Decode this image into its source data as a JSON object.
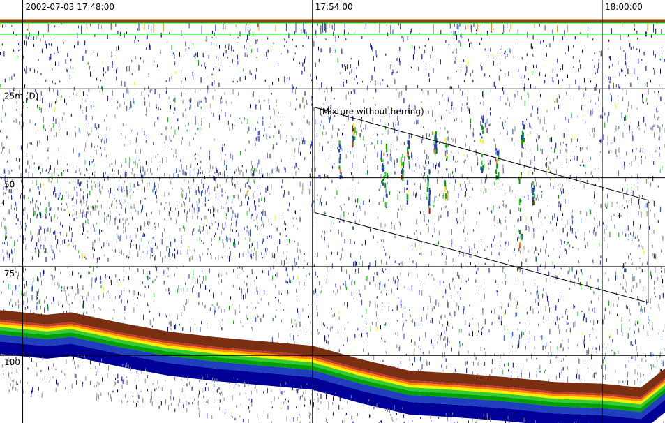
{
  "chart_data": {
    "type": "echogram",
    "time_labels": [
      {
        "text": "2002-07-03 17:48:00",
        "minutes": 0
      },
      {
        "text": "17:54:00",
        "minutes": 6
      },
      {
        "text": "18:00:00",
        "minutes": 12
      }
    ],
    "x_range_minutes": [
      -0.47,
      13.3
    ],
    "y_range_m": [
      0,
      119
    ],
    "depth_labels": [
      {
        "text": "25m (D)",
        "depth": 25
      },
      {
        "text": "50",
        "depth": 50
      },
      {
        "text": "75",
        "depth": 75
      },
      {
        "text": "100",
        "depth": 100
      }
    ],
    "grid": true,
    "region": {
      "label": "(Mixture without herring)",
      "polygon": [
        {
          "t": 6.05,
          "d": 30.2
        },
        {
          "t": 6.05,
          "d": 59.8
        },
        {
          "t": 12.95,
          "d": 85.1
        },
        {
          "t": 12.95,
          "d": 56.3
        }
      ]
    },
    "surface_lines": [
      {
        "depth": 6.4,
        "color": "#00c000"
      },
      {
        "depth": 9.6,
        "color": "#33ee33"
      }
    ],
    "seabed_profile": [
      {
        "t": -0.47,
        "d": 90.0
      },
      {
        "t": 0.5,
        "d": 91.3
      },
      {
        "t": 1.0,
        "d": 90.6
      },
      {
        "t": 2.0,
        "d": 93.5
      },
      {
        "t": 3.0,
        "d": 96.0
      },
      {
        "t": 4.0,
        "d": 97.6
      },
      {
        "t": 5.0,
        "d": 98.8
      },
      {
        "t": 6.0,
        "d": 100.0
      },
      {
        "t": 7.0,
        "d": 103.8
      },
      {
        "t": 8.0,
        "d": 107.0
      },
      {
        "t": 9.0,
        "d": 107.8
      },
      {
        "t": 10.0,
        "d": 108.8
      },
      {
        "t": 11.0,
        "d": 110.2
      },
      {
        "t": 12.0,
        "d": 110.7
      },
      {
        "t": 12.8,
        "d": 111.8
      },
      {
        "t": 13.3,
        "d": 106.4
      }
    ],
    "colors": {
      "background": "#ffffff",
      "grid": "#000000",
      "region": "#000000",
      "surface_band": "#8b4513",
      "seabed_scale": [
        "#7a2e12",
        "#c0392b",
        "#ff8800",
        "#ffee00",
        "#33cc33",
        "#00a000",
        "#1f3fbf",
        "#000099"
      ],
      "echo_scale": [
        "#888888",
        "#1f3fbf",
        "#000099",
        "#00a000",
        "#33cc33",
        "#ffee00",
        "#ff8800",
        "#cc0000"
      ]
    }
  }
}
